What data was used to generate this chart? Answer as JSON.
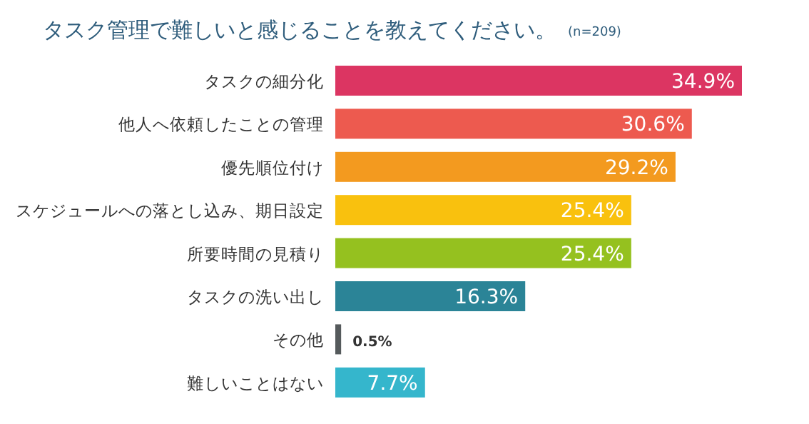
{
  "chart_data": {
    "type": "bar",
    "orientation": "horizontal",
    "title": "タスク管理で難しいと感じることを教えてください。",
    "subtitle": "(n=209)",
    "categories": [
      "タスクの細分化",
      "他人へ依頼したことの管理",
      "優先順位付け",
      "スケジュールへの落とし込み、期日設定",
      "所要時間の見積り",
      "タスクの洗い出し",
      "その他",
      "難しいことはない"
    ],
    "values": [
      34.9,
      30.6,
      29.2,
      25.4,
      25.4,
      16.3,
      0.5,
      7.7
    ],
    "colors": [
      "#dc3562",
      "#ed5a4f",
      "#f39a1f",
      "#f9c10e",
      "#95c11f",
      "#2b8497",
      "#555a5c",
      "#35b6cc"
    ],
    "value_labels": [
      "34.9%",
      "30.6%",
      "29.2%",
      "25.4%",
      "25.4%",
      "16.3%",
      "0.5%",
      "7.7%"
    ]
  }
}
